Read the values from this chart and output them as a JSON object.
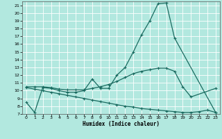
{
  "xlabel": "Humidex (Indice chaleur)",
  "bg_color": "#b2e8df",
  "grid_color": "#ffffff",
  "line_color": "#1a6b60",
  "xlim": [
    -0.5,
    23.5
  ],
  "ylim": [
    7,
    21.5
  ],
  "xticks": [
    0,
    1,
    2,
    3,
    4,
    5,
    6,
    7,
    8,
    9,
    10,
    11,
    12,
    13,
    14,
    15,
    16,
    17,
    18,
    19,
    20,
    21,
    22,
    23
  ],
  "yticks": [
    7,
    8,
    9,
    10,
    11,
    12,
    13,
    14,
    15,
    16,
    17,
    18,
    19,
    20,
    21
  ],
  "line1_x": [
    0,
    1,
    2,
    3,
    4,
    5,
    6,
    7,
    8,
    9,
    10,
    11,
    12,
    13,
    14,
    15,
    16,
    17,
    18,
    23
  ],
  "line1_y": [
    8.5,
    7.2,
    10.4,
    10.3,
    10.0,
    9.8,
    9.8,
    10.0,
    11.5,
    10.3,
    10.3,
    12.0,
    13.0,
    15.0,
    17.2,
    19.0,
    21.2,
    21.3,
    16.8,
    7.2
  ],
  "line2_x": [
    0,
    1,
    2,
    3,
    4,
    5,
    6,
    7,
    8,
    9,
    10,
    11,
    12,
    13,
    14,
    15,
    16,
    17,
    18,
    19,
    20,
    23
  ],
  "line2_y": [
    10.5,
    10.5,
    10.5,
    10.4,
    10.2,
    10.1,
    10.1,
    10.1,
    10.3,
    10.5,
    10.8,
    11.2,
    11.7,
    12.2,
    12.5,
    12.7,
    12.9,
    12.9,
    12.5,
    10.5,
    9.2,
    10.3
  ],
  "line3_x": [
    0,
    1,
    2,
    3,
    4,
    5,
    6,
    7,
    8,
    9,
    10,
    11,
    12,
    13,
    14,
    15,
    16,
    17,
    18,
    19,
    20,
    21,
    22,
    23
  ],
  "line3_y": [
    10.4,
    10.2,
    10.0,
    9.8,
    9.6,
    9.4,
    9.2,
    9.0,
    8.8,
    8.6,
    8.4,
    8.2,
    8.0,
    7.9,
    7.7,
    7.6,
    7.5,
    7.4,
    7.3,
    7.2,
    7.2,
    7.3,
    7.5,
    7.2
  ]
}
